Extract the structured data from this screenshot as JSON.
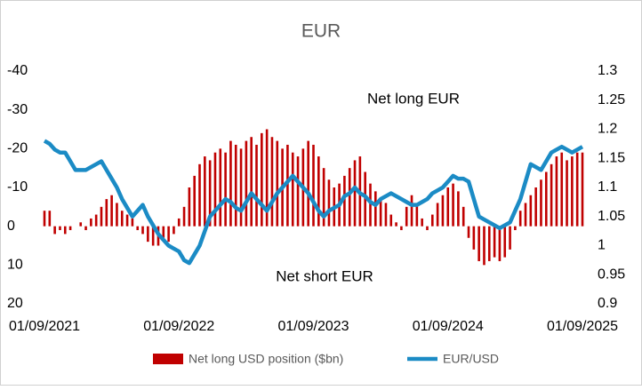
{
  "chart_data": {
    "type": "bar",
    "title": "EUR",
    "annotations": [
      "Net long EUR",
      "Net short EUR"
    ],
    "categories": [
      "01/09/2021",
      null,
      null,
      null,
      null,
      null,
      null,
      null,
      null,
      null,
      null,
      null,
      null,
      null,
      null,
      null,
      null,
      null,
      null,
      null,
      null,
      null,
      null,
      null,
      null,
      null,
      "01/09/2022",
      null,
      null,
      null,
      null,
      null,
      null,
      null,
      null,
      null,
      null,
      null,
      null,
      null,
      null,
      null,
      null,
      null,
      null,
      null,
      null,
      null,
      null,
      null,
      null,
      null,
      "01/09/2023",
      null,
      null,
      null,
      null,
      null,
      null,
      null,
      null,
      null,
      null,
      null,
      null,
      null,
      null,
      null,
      null,
      null,
      null,
      null,
      null,
      null,
      null,
      null,
      null,
      null,
      "01/09/2024",
      null,
      null,
      null,
      null,
      null,
      null,
      null,
      null,
      null,
      null,
      null,
      null,
      null,
      null,
      null,
      null,
      null,
      null,
      null,
      null,
      null,
      null,
      null,
      null,
      null,
      "01/09/2025"
    ],
    "series": [
      {
        "name": "Net long USD position ($bn)",
        "type": "bar",
        "color": "#c00000",
        "values": [
          -4,
          -4,
          2,
          1,
          2,
          1,
          0,
          -1,
          1,
          -2,
          -3,
          -5,
          -7,
          -8,
          -6,
          -4,
          -3,
          -2,
          1,
          2,
          4,
          5,
          5,
          3,
          4,
          2,
          -2,
          -5,
          -10,
          -13,
          -16,
          -18,
          -17,
          -19,
          -20,
          -19,
          -22,
          -21,
          -20,
          -22,
          -23,
          -21,
          -24,
          -25,
          -23,
          -22,
          -20,
          -21,
          -19,
          -18,
          -20,
          -22,
          -21,
          -18,
          -15,
          -12,
          -10,
          -11,
          -13,
          -15,
          -17,
          -18,
          -14,
          -11,
          -9,
          -7,
          -6,
          -3,
          -1,
          1,
          -5,
          -8,
          -6,
          -2,
          1,
          -3,
          -6,
          -8,
          -10,
          -11,
          -9,
          -5,
          3,
          6,
          9,
          10,
          9,
          8,
          9,
          8,
          6,
          1,
          -4,
          -6,
          -8,
          -10,
          -12,
          -14,
          -16,
          -18,
          -19,
          -17,
          -18,
          -19,
          -19
        ]
      },
      {
        "name": "EUR/USD",
        "type": "line",
        "axis": "y2",
        "color": "#1b8bc5",
        "values": [
          1.18,
          1.175,
          1.165,
          1.16,
          1.16,
          1.145,
          1.13,
          1.13,
          1.13,
          1.135,
          1.14,
          1.145,
          1.13,
          1.115,
          1.1,
          1.08,
          1.065,
          1.05,
          1.06,
          1.07,
          1.05,
          1.035,
          1.02,
          1.01,
          1.0,
          0.995,
          0.99,
          0.975,
          0.97,
          0.985,
          1.0,
          1.025,
          1.05,
          1.06,
          1.07,
          1.08,
          1.075,
          1.065,
          1.06,
          1.075,
          1.09,
          1.08,
          1.07,
          1.06,
          1.075,
          1.09,
          1.1,
          1.11,
          1.12,
          1.11,
          1.1,
          1.09,
          1.075,
          1.06,
          1.05,
          1.06,
          1.065,
          1.07,
          1.085,
          1.09,
          1.1,
          1.09,
          1.085,
          1.075,
          1.07,
          1.08,
          1.085,
          1.09,
          1.085,
          1.08,
          1.075,
          1.07,
          1.07,
          1.075,
          1.08,
          1.09,
          1.095,
          1.1,
          1.11,
          1.12,
          1.115,
          1.115,
          1.11,
          1.08,
          1.05,
          1.045,
          1.04,
          1.035,
          1.03,
          1.035,
          1.04,
          1.06,
          1.08,
          1.11,
          1.14,
          1.135,
          1.13,
          1.145,
          1.16,
          1.165,
          1.17,
          1.165,
          1.16,
          1.165,
          1.17
        ]
      }
    ],
    "ylim": [
      -40,
      20
    ],
    "y_inverted": true,
    "yticks": [
      -40,
      -30,
      -20,
      -10,
      0,
      10,
      20
    ],
    "y2lim": [
      0.9,
      1.3
    ],
    "y2ticks": [
      0.9,
      0.95,
      1,
      1.05,
      1.1,
      1.15,
      1.2,
      1.25,
      1.3
    ],
    "grid": false,
    "legend": "bottom"
  }
}
